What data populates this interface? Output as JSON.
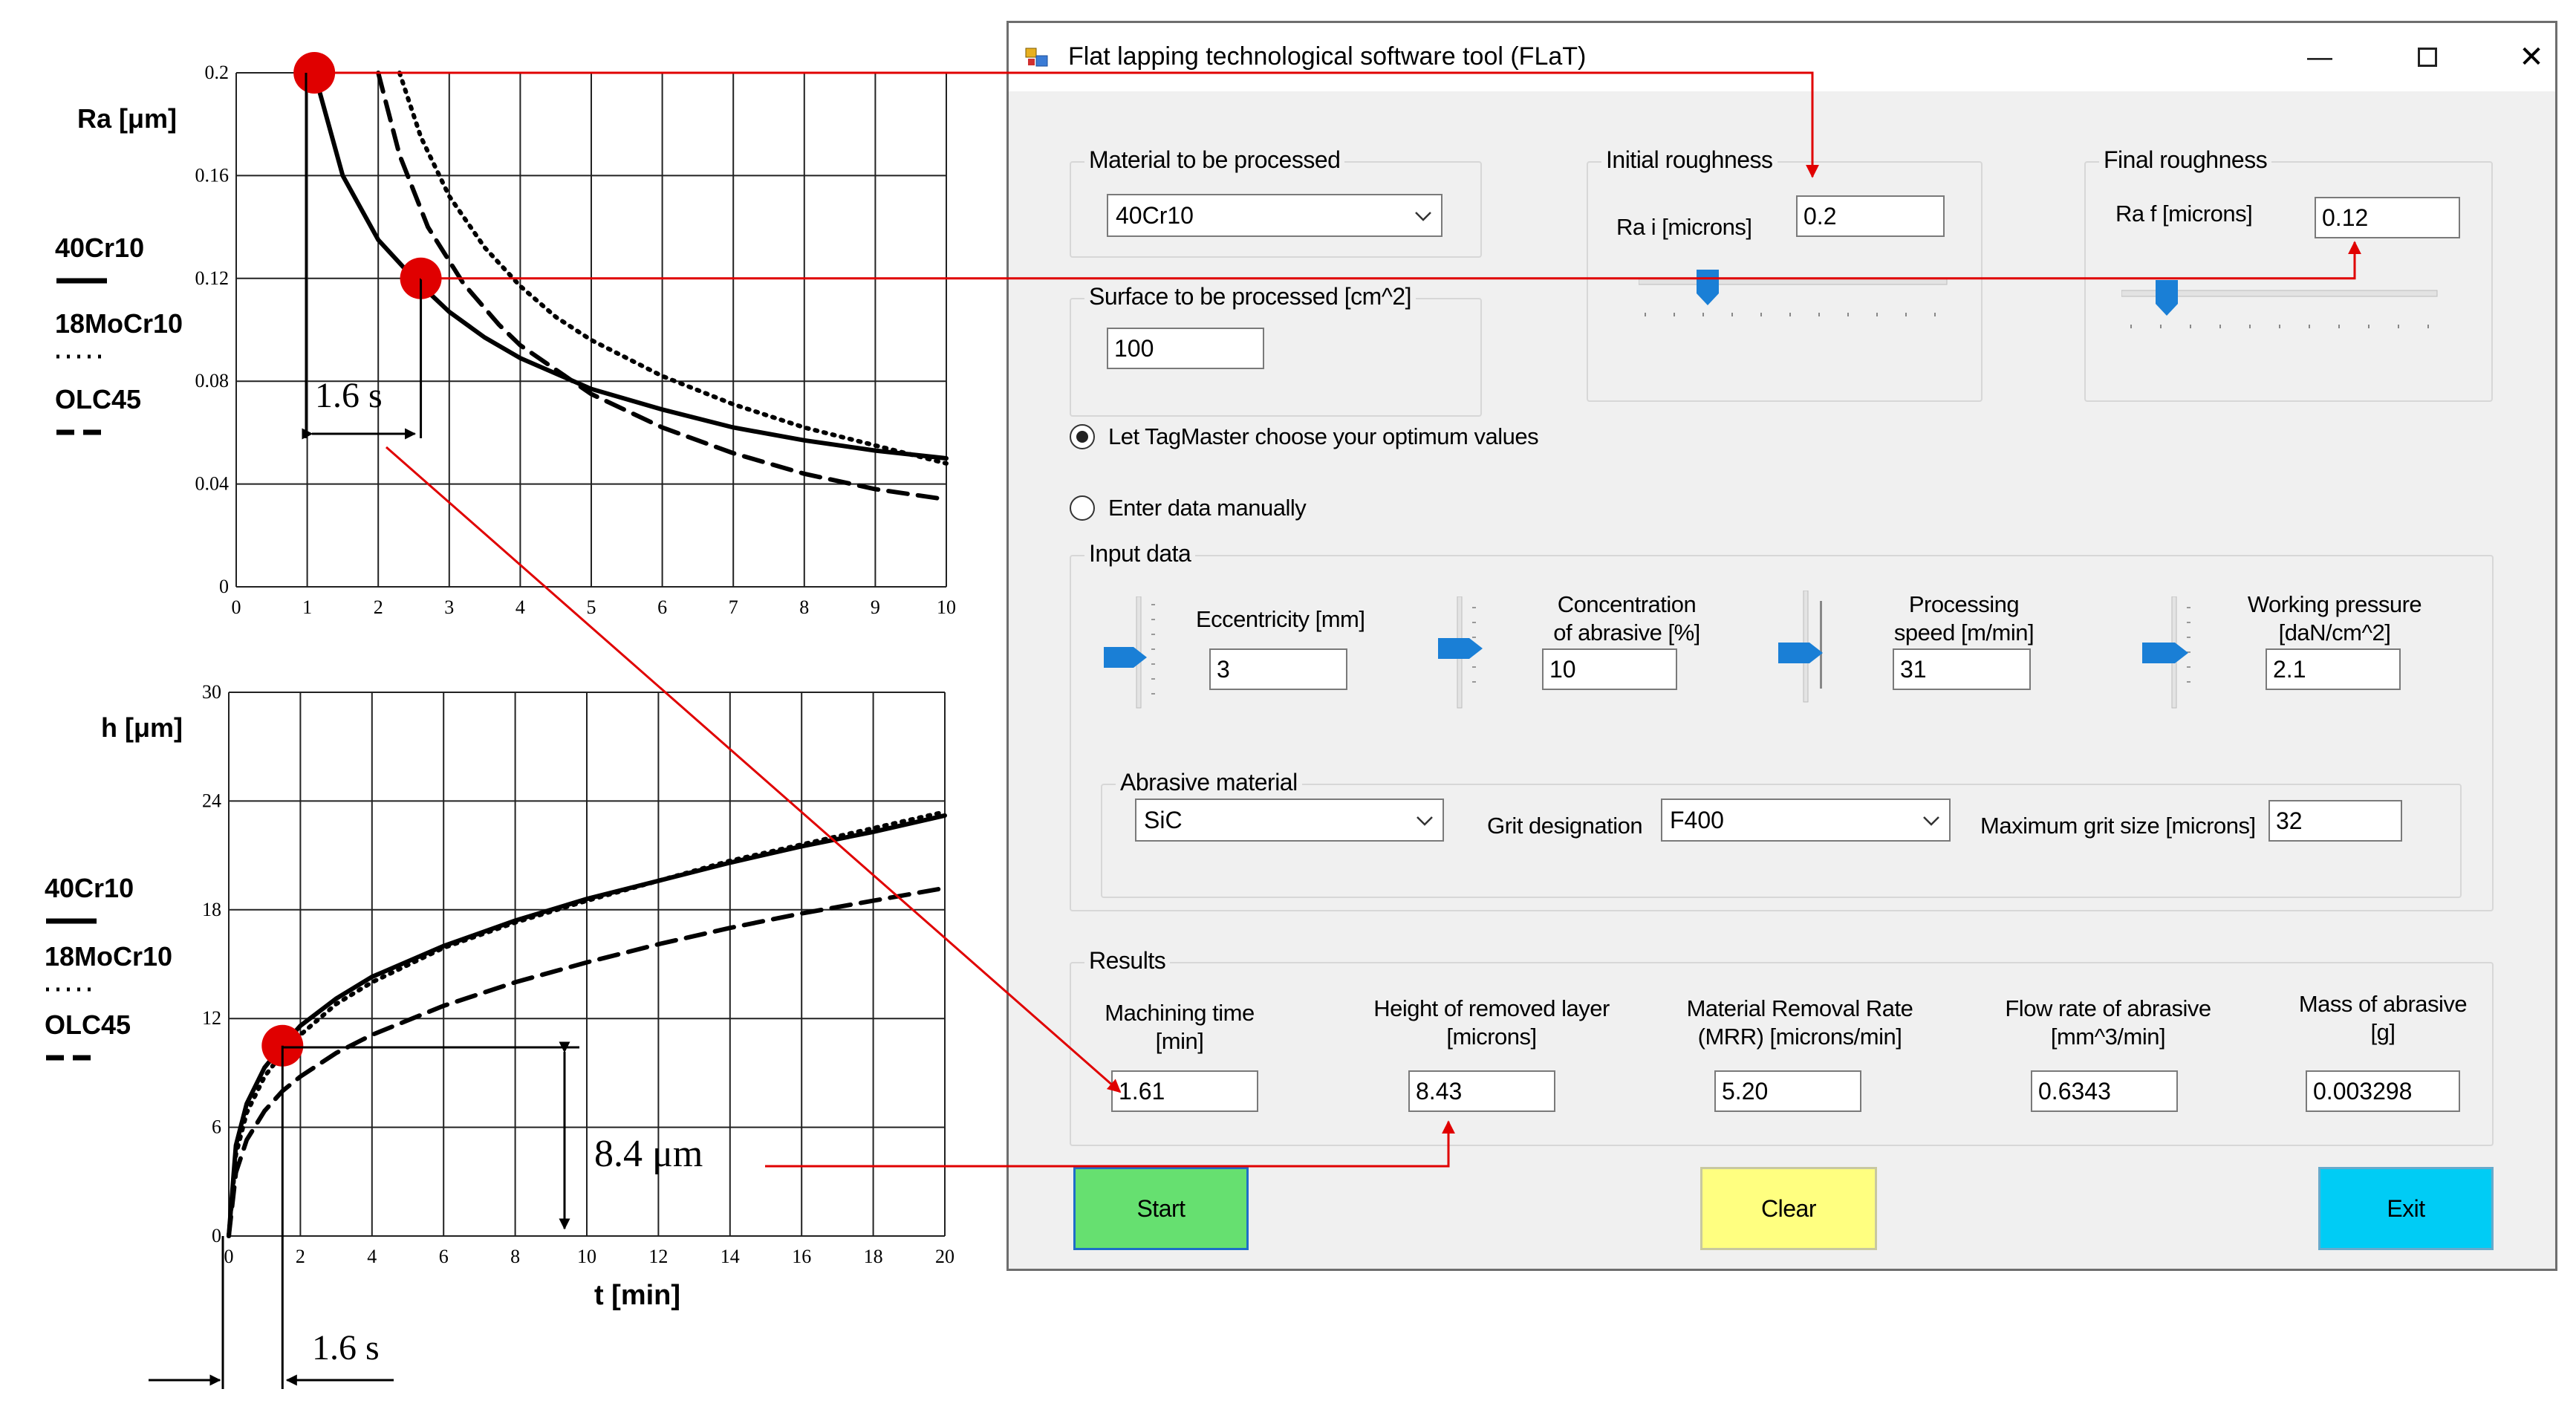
{
  "window": {
    "title": "Flat lapping technological software tool  (FLaT)",
    "minimize_glyph": "—",
    "close_glyph": "✕"
  },
  "material_group": {
    "caption": "Material to be processed",
    "selected": "40Cr10"
  },
  "surface_group": {
    "caption": "Surface to be processed [cm^2]",
    "value": "100"
  },
  "initial_roughness": {
    "caption": "Initial roughness",
    "label": "Ra i [microns]",
    "value": "0.2"
  },
  "final_roughness": {
    "caption": "Final roughness",
    "label": "Ra f [microns]",
    "value": "0.12"
  },
  "mode": {
    "auto_label": "Let TagMaster choose your optimum values",
    "auto_selected": true,
    "manual_label": "Enter data manually",
    "manual_selected": false
  },
  "input_data": {
    "caption": "Input data",
    "eccentricity": {
      "label": "Eccentricity [mm]",
      "value": "3"
    },
    "concentration": {
      "label_1": "Concentration",
      "label_2": "of abrasive [%]",
      "value": "10"
    },
    "speed": {
      "label_1": "Processing",
      "label_2": "speed [m/min]",
      "value": "31"
    },
    "pressure": {
      "label_1": "Working pressure",
      "label_2": "[daN/cm^2]",
      "value": "2.1"
    }
  },
  "abrasive": {
    "caption": "Abrasive material",
    "material_selected": "SiC",
    "grit_label": "Grit designation",
    "grit_selected": "F400",
    "max_grit_label": "Maximum grit size [microns]",
    "max_grit_value": "32"
  },
  "results": {
    "caption": "Results",
    "machining_time": {
      "label_1": "Machining time",
      "label_2": "[min]",
      "value": "1.61"
    },
    "height_removed": {
      "label_1": "Height of removed layer",
      "label_2": "[microns]",
      "value": "8.43"
    },
    "mrr": {
      "label_1": "Material Removal Rate",
      "label_2": "(MRR) [microns/min]",
      "value": "5.20"
    },
    "flow_rate": {
      "label_1": "Flow rate of abrasive",
      "label_2": "[mm^3/min]",
      "value": "0.6343"
    },
    "mass": {
      "label_1": "Mass of abrasive",
      "label_2": "[g]",
      "value": "0.003298"
    }
  },
  "buttons": {
    "start": "Start",
    "clear": "Clear",
    "exit": "Exit"
  },
  "colors": {
    "start": "#66e070",
    "clear": "#ffff80",
    "exit": "#00ccf5",
    "annotation": "#e00000",
    "slider_thumb": "#1a7fd6"
  },
  "chart_data": [
    {
      "type": "line",
      "ylabel": "Ra  [μm]",
      "xlabel": "",
      "x_ticks": [
        "0",
        "1",
        "2",
        "3",
        "4",
        "5",
        "6",
        "7",
        "8",
        "9",
        "10"
      ],
      "y_ticks": [
        "0",
        "0.04",
        "0.08",
        "0.12",
        "0.16",
        "0.2"
      ],
      "xlim": [
        0,
        10
      ],
      "ylim": [
        0,
        0.2
      ],
      "grid": true,
      "legend": [
        "40Cr10",
        "18MoCr10",
        "OLC45"
      ],
      "series": [
        {
          "name": "40Cr10",
          "style": "solid",
          "x": [
            1.1,
            1.5,
            2,
            2.5,
            3,
            3.5,
            4,
            5,
            6,
            7,
            8,
            9,
            10
          ],
          "values": [
            0.2,
            0.16,
            0.135,
            0.12,
            0.107,
            0.097,
            0.089,
            0.077,
            0.069,
            0.062,
            0.057,
            0.053,
            0.05
          ]
        },
        {
          "name": "18MoCr10",
          "style": "dotted",
          "x": [
            2.3,
            2.6,
            3,
            3.5,
            4,
            4.5,
            5,
            6,
            7,
            8,
            9,
            10
          ],
          "values": [
            0.2,
            0.175,
            0.152,
            0.132,
            0.117,
            0.105,
            0.096,
            0.082,
            0.071,
            0.062,
            0.055,
            0.048
          ]
        },
        {
          "name": "OLC45",
          "style": "dashed",
          "x": [
            2.0,
            2.3,
            2.7,
            3.2,
            3.7,
            4,
            5,
            6,
            7,
            8,
            9,
            10
          ],
          "values": [
            0.2,
            0.168,
            0.14,
            0.118,
            0.102,
            0.094,
            0.075,
            0.062,
            0.052,
            0.044,
            0.038,
            0.034
          ]
        }
      ],
      "annotations": [
        "1.6 s"
      ]
    },
    {
      "type": "line",
      "ylabel": "h   [μm]",
      "xlabel": "t [min]",
      "x_ticks": [
        "0",
        "2",
        "4",
        "6",
        "8",
        "10",
        "12",
        "14",
        "16",
        "18",
        "20"
      ],
      "y_ticks": [
        "0",
        "6",
        "12",
        "18",
        "24",
        "30"
      ],
      "xlim": [
        0,
        20
      ],
      "ylim": [
        0,
        30
      ],
      "grid": true,
      "legend": [
        "40Cr10",
        "18MoCr10",
        "OLC45"
      ],
      "series": [
        {
          "name": "40Cr10",
          "style": "solid",
          "x": [
            0,
            0.2,
            0.5,
            1,
            1.5,
            2,
            3,
            4,
            6,
            8,
            10,
            12,
            14,
            16,
            18,
            20
          ],
          "values": [
            0,
            5,
            7.3,
            9.3,
            10.5,
            11.6,
            13.1,
            14.3,
            16,
            17.4,
            18.6,
            19.6,
            20.6,
            21.5,
            22.3,
            23.2
          ]
        },
        {
          "name": "18MoCr10",
          "style": "dotted",
          "x": [
            0,
            0.2,
            0.5,
            1,
            1.5,
            2,
            3,
            4,
            6,
            8,
            10,
            12,
            14,
            16,
            18,
            20
          ],
          "values": [
            0,
            4.5,
            6.8,
            8.8,
            10.1,
            11.1,
            12.8,
            14,
            15.9,
            17.3,
            18.5,
            19.6,
            20.7,
            21.6,
            22.5,
            23.4
          ]
        },
        {
          "name": "OLC45",
          "style": "dashed",
          "x": [
            0,
            0.2,
            0.5,
            1,
            1.5,
            2,
            3,
            4,
            6,
            8,
            10,
            12,
            14,
            16,
            18,
            20
          ],
          "values": [
            0,
            3.5,
            5.3,
            6.9,
            8,
            8.8,
            10.1,
            11.1,
            12.7,
            14,
            15.1,
            16.1,
            17,
            17.8,
            18.5,
            19.2
          ]
        }
      ],
      "annotations": [
        "8.4 μm",
        "1.6 s"
      ]
    }
  ]
}
